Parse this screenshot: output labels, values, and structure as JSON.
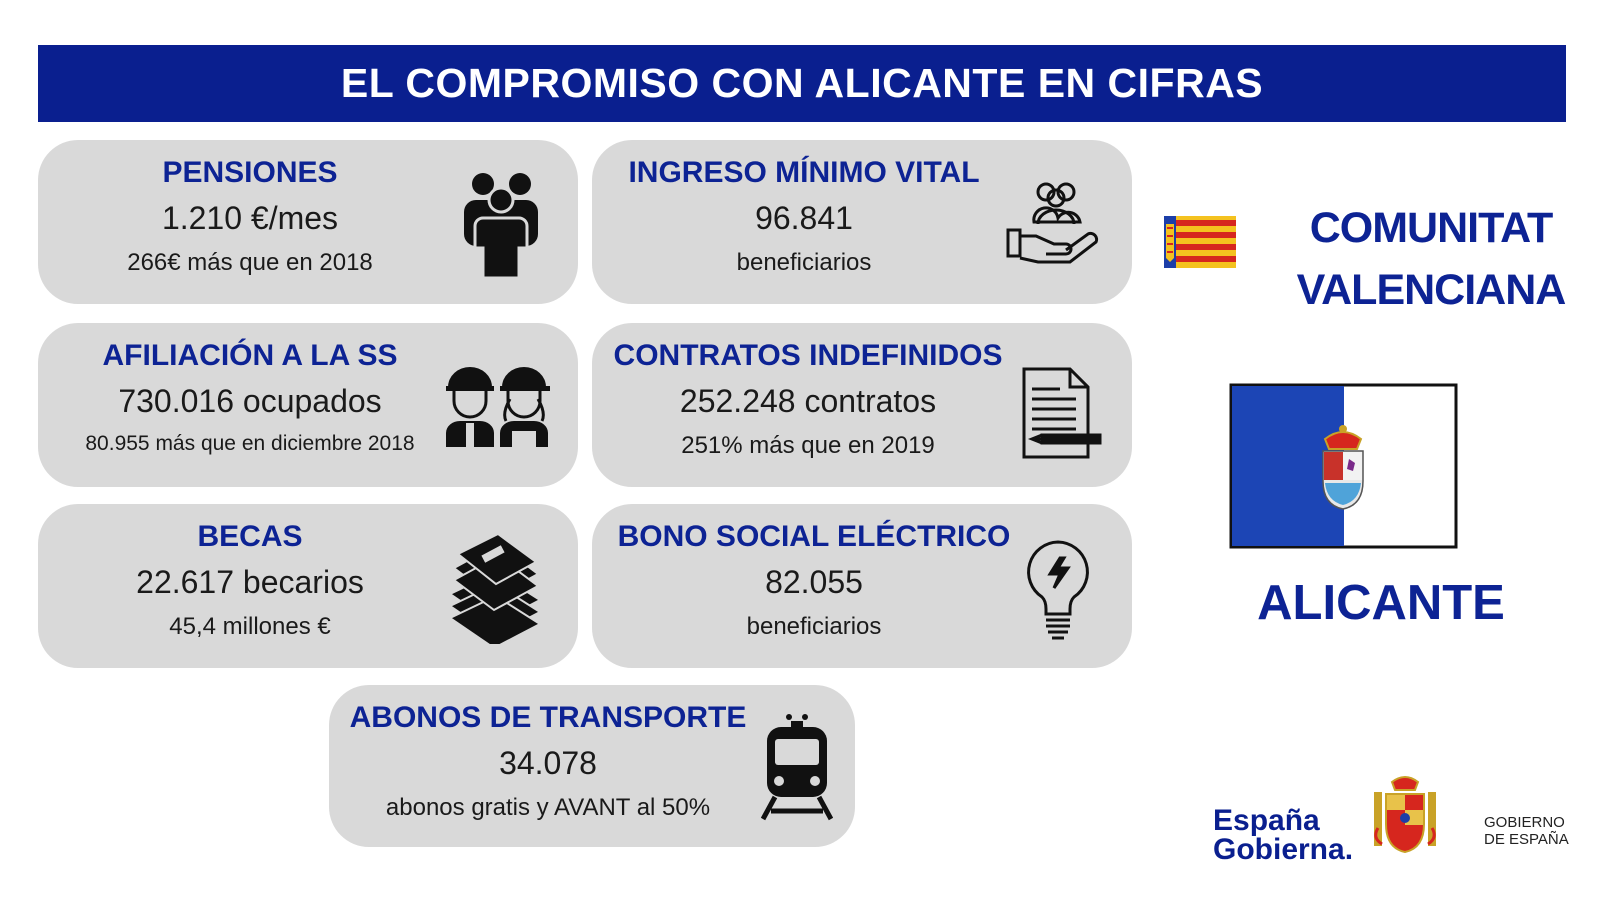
{
  "header": {
    "title": "EL COMPROMISO CON ALICANTE EN CIFRAS"
  },
  "cards": [
    {
      "title": "PENSIONES",
      "value": "1.210 €/mes",
      "detail": "266€ más que en 2018",
      "icon": "people-group-icon"
    },
    {
      "title": "INGRESO MÍNIMO VITAL",
      "value": "96.841",
      "detail": "beneficiarios",
      "icon": "hand-holding-people-icon"
    },
    {
      "title": "AFILIACIÓN A LA SS",
      "value": "730.016 ocupados",
      "detail": "80.955 más que en diciembre 2018",
      "icon": "workers-helmet-icon"
    },
    {
      "title": "CONTRATOS INDEFINIDOS",
      "value": "252.248 contratos",
      "detail": "251% más que en 2019",
      "icon": "contract-document-icon"
    },
    {
      "title": "BECAS",
      "value": "22.617 becarios",
      "detail": "45,4 millones €",
      "icon": "books-stack-icon"
    },
    {
      "title": "BONO SOCIAL ELÉCTRICO",
      "value": "82.055",
      "detail": "beneficiarios",
      "icon": "light-bulb-icon"
    },
    {
      "title": "ABONOS DE TRANSPORTE",
      "value": "34.078",
      "detail": "abonos gratis y AVANT al 50%",
      "icon": "train-icon"
    }
  ],
  "region": {
    "line1": "COMUNITAT",
    "line2": "VALENCIANA",
    "flag_icon": "comunitat-valenciana-flag-icon"
  },
  "province": {
    "name": "ALICANTE",
    "flag_icon": "alicante-flag-icon"
  },
  "footer": {
    "brand_line1": "España",
    "brand_line2": "Gobierna.",
    "government_line1": "GOBIERNO",
    "government_line2": "DE ESPAÑA",
    "coat_of_arms_icon": "spain-coat-of-arms-icon"
  },
  "colors": {
    "navy": "#0a1f8f",
    "title_blue": "#0d2394",
    "card_gray": "#d9d9d9",
    "senyera_yellow": "#f4c21f",
    "senyera_red": "#d6261e",
    "alicante_blue": "#1c45b5"
  }
}
